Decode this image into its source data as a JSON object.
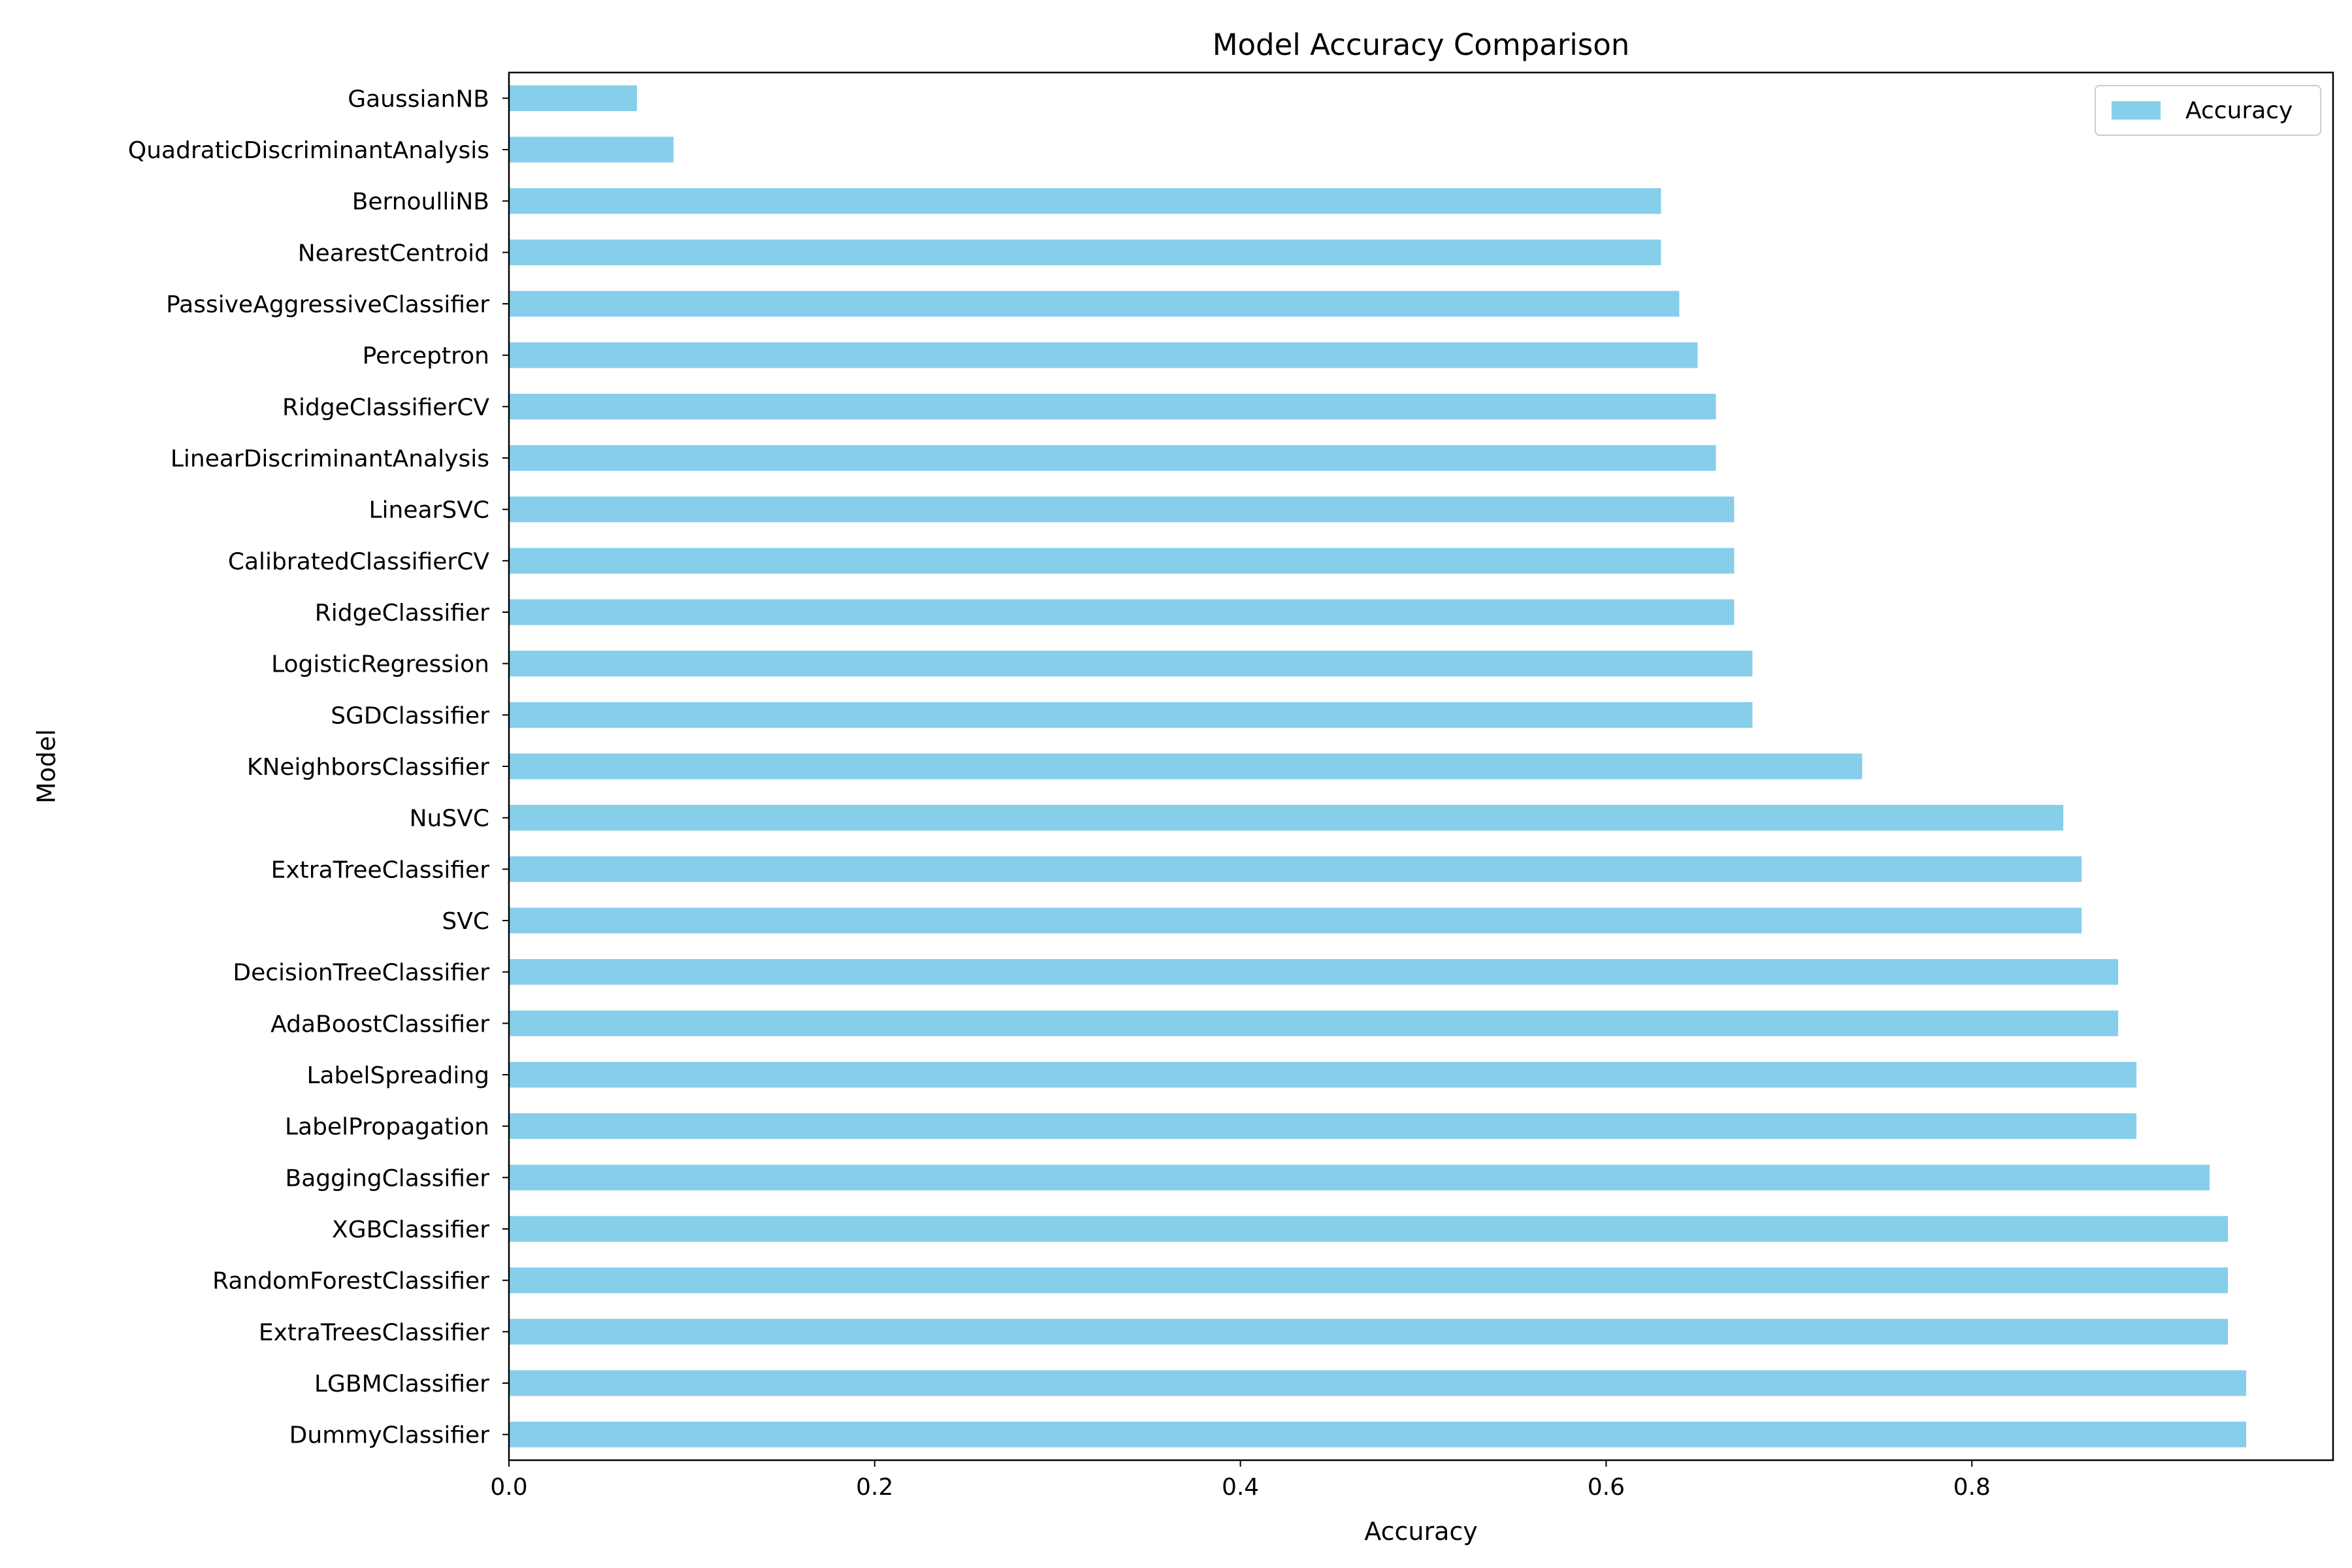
{
  "chart_data": {
    "type": "bar",
    "orientation": "horizontal",
    "title": "Model Accuracy Comparison",
    "xlabel": "Accuracy",
    "ylabel": "Model",
    "xlim": [
      0,
      0.9975
    ],
    "xticks": [
      0.0,
      0.2,
      0.4,
      0.6,
      0.8
    ],
    "xtick_labels": [
      "0.0",
      "0.2",
      "0.4",
      "0.6",
      "0.8"
    ],
    "grid": false,
    "legend": {
      "placement": "top-right",
      "entries": [
        "Accuracy"
      ]
    },
    "bar_color": "#87ceeb",
    "categories": [
      "DummyClassifier",
      "LGBMClassifier",
      "ExtraTreesClassifier",
      "RandomForestClassifier",
      "XGBClassifier",
      "BaggingClassifier",
      "LabelPropagation",
      "LabelSpreading",
      "AdaBoostClassifier",
      "DecisionTreeClassifier",
      "SVC",
      "ExtraTreeClassifier",
      "NuSVC",
      "KNeighborsClassifier",
      "SGDClassifier",
      "LogisticRegression",
      "RidgeClassifier",
      "CalibratedClassifierCV",
      "LinearSVC",
      "LinearDiscriminantAnalysis",
      "RidgeClassifierCV",
      "Perceptron",
      "PassiveAggressiveClassifier",
      "NearestCentroid",
      "BernoulliNB",
      "QuadraticDiscriminantAnalysis",
      "GaussianNB"
    ],
    "series": [
      {
        "name": "Accuracy",
        "values": [
          0.95,
          0.95,
          0.94,
          0.94,
          0.94,
          0.93,
          0.89,
          0.89,
          0.88,
          0.88,
          0.86,
          0.86,
          0.85,
          0.74,
          0.68,
          0.68,
          0.67,
          0.67,
          0.67,
          0.66,
          0.66,
          0.65,
          0.64,
          0.63,
          0.63,
          0.09,
          0.07
        ]
      }
    ]
  }
}
